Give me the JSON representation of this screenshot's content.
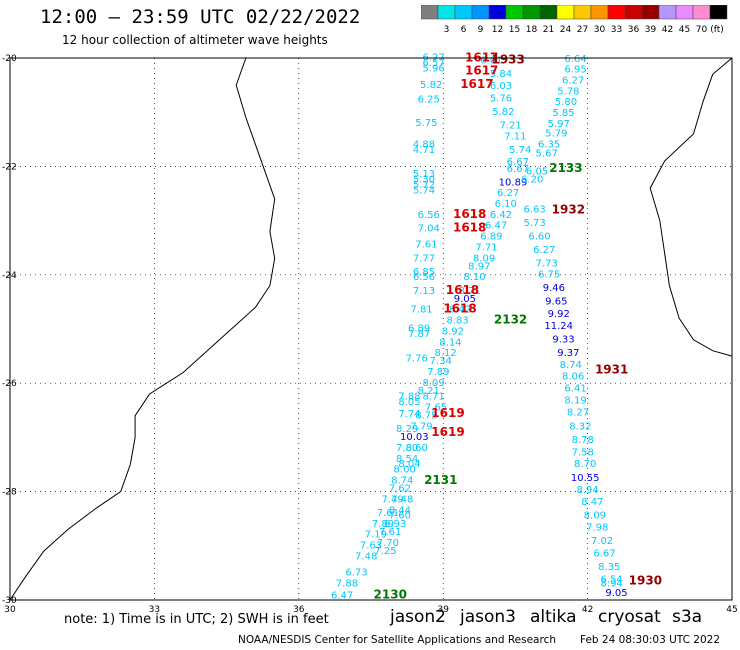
{
  "header": {
    "title": "12:00 – 23:59 UTC 02/22/2022",
    "subtitle": "12 hour collection of altimeter wave heights"
  },
  "legend": {
    "unit": "(ft)",
    "entries": [
      {
        "label": "",
        "color": "#7f7f7f"
      },
      {
        "label": "3",
        "color": "#00e5e5"
      },
      {
        "label": "6",
        "color": "#00c8ff"
      },
      {
        "label": "9",
        "color": "#0096ff"
      },
      {
        "label": "12",
        "color": "#0000dc"
      },
      {
        "label": "15",
        "color": "#00c800"
      },
      {
        "label": "18",
        "color": "#009600"
      },
      {
        "label": "21",
        "color": "#006400"
      },
      {
        "label": "24",
        "color": "#ffff00"
      },
      {
        "label": "27",
        "color": "#ffc800"
      },
      {
        "label": "30",
        "color": "#ff9600"
      },
      {
        "label": "33",
        "color": "#ff0000"
      },
      {
        "label": "36",
        "color": "#c80000"
      },
      {
        "label": "39",
        "color": "#960000"
      },
      {
        "label": "42",
        "color": "#b496ff"
      },
      {
        "label": "45",
        "color": "#e68cff"
      },
      {
        "label": "70",
        "color": "#ff8cd2"
      },
      {
        "label": "",
        "color": "#000000"
      }
    ]
  },
  "map": {
    "lon_ticks": [
      "30",
      "33",
      "36",
      "39",
      "42",
      "45"
    ],
    "lat_ticks": [
      "-20",
      "-22",
      "-24",
      "-26",
      "-28",
      "-30"
    ],
    "lon_range": [
      30,
      45
    ],
    "lat_range": [
      -30,
      -20
    ],
    "grid": "dotted",
    "tracks": [
      {
        "sat": "jason2",
        "label_color": "#dc0000",
        "times": [
          {
            "text": "1617",
            "lon": 39.8,
            "lat": -20.06
          },
          {
            "text": "1617",
            "lon": 39.8,
            "lat": -20.3
          },
          {
            "text": "1617",
            "lon": 39.7,
            "lat": -20.55
          },
          {
            "text": "1618",
            "lon": 39.55,
            "lat": -22.95
          },
          {
            "text": "1618",
            "lon": 39.55,
            "lat": -23.2
          },
          {
            "text": "1618",
            "lon": 39.4,
            "lat": -24.35
          },
          {
            "text": "1618",
            "lon": 39.35,
            "lat": -24.7
          },
          {
            "text": "1619",
            "lon": 39.1,
            "lat": -26.62
          },
          {
            "text": "1619",
            "lon": 39.1,
            "lat": -26.97
          }
        ]
      },
      {
        "sat": "jason3",
        "label_color": "#007800",
        "times": [
          {
            "text": "2133",
            "lon": 41.55,
            "lat": -22.1
          },
          {
            "text": "2132",
            "lon": 40.4,
            "lat": -24.9
          },
          {
            "text": "2131",
            "lon": 38.95,
            "lat": -27.86
          },
          {
            "text": "2130",
            "lon": 37.9,
            "lat": -29.97
          }
        ]
      },
      {
        "sat": "cryosat",
        "label_color": "#960000",
        "times": [
          {
            "text": "1933",
            "lon": 40.35,
            "lat": -20.1
          },
          {
            "text": "1932",
            "lon": 41.6,
            "lat": -22.87
          },
          {
            "text": "1931",
            "lon": 42.5,
            "lat": -25.82
          },
          {
            "text": "1930",
            "lon": 43.2,
            "lat": -29.71
          }
        ]
      }
    ],
    "wave_heights": [
      {
        "v": "6.27",
        "lon": 38.8,
        "lat": -20.05,
        "c": "#00c8ff"
      },
      {
        "v": "6.57",
        "lon": 38.8,
        "lat": -20.15,
        "c": "#00c8ff"
      },
      {
        "v": "5.96",
        "lon": 38.8,
        "lat": -20.25,
        "c": "#00c8ff"
      },
      {
        "v": "5.82",
        "lon": 38.75,
        "lat": -20.55,
        "c": "#00c8ff"
      },
      {
        "v": "6.25",
        "lon": 38.7,
        "lat": -20.82,
        "c": "#00c8ff"
      },
      {
        "v": "5.75",
        "lon": 38.65,
        "lat": -21.25,
        "c": "#00c8ff"
      },
      {
        "v": "4.88",
        "lon": 38.6,
        "lat": -21.65,
        "c": "#00c8ff"
      },
      {
        "v": "4.71",
        "lon": 38.6,
        "lat": -21.75,
        "c": "#00c8ff"
      },
      {
        "v": "5.13",
        "lon": 38.6,
        "lat": -22.2,
        "c": "#00c8ff"
      },
      {
        "v": "5.30",
        "lon": 38.6,
        "lat": -22.3,
        "c": "#00c8ff"
      },
      {
        "v": "5.72",
        "lon": 38.6,
        "lat": -22.4,
        "c": "#00c8ff"
      },
      {
        "v": "5.74",
        "lon": 38.6,
        "lat": -22.5,
        "c": "#00c8ff"
      },
      {
        "v": "6.56",
        "lon": 38.7,
        "lat": -22.95,
        "c": "#00c8ff"
      },
      {
        "v": "7.04",
        "lon": 38.7,
        "lat": -23.2,
        "c": "#00c8ff"
      },
      {
        "v": "7.61",
        "lon": 38.65,
        "lat": -23.5,
        "c": "#00c8ff"
      },
      {
        "v": "7.77",
        "lon": 38.6,
        "lat": -23.75,
        "c": "#00c8ff"
      },
      {
        "v": "6.85",
        "lon": 38.6,
        "lat": -24.0,
        "c": "#00c8ff"
      },
      {
        "v": "6.56",
        "lon": 38.6,
        "lat": -24.1,
        "c": "#00c8ff"
      },
      {
        "v": "7.13",
        "lon": 38.6,
        "lat": -24.35,
        "c": "#00c8ff"
      },
      {
        "v": "7.81",
        "lon": 38.55,
        "lat": -24.7,
        "c": "#00c8ff"
      },
      {
        "v": "6.89",
        "lon": 38.5,
        "lat": -25.05,
        "c": "#00c8ff"
      },
      {
        "v": "7.87",
        "lon": 38.5,
        "lat": -25.15,
        "c": "#00c8ff"
      },
      {
        "v": "7.76",
        "lon": 38.45,
        "lat": -25.6,
        "c": "#00c8ff"
      },
      {
        "v": "7.88",
        "lon": 38.3,
        "lat": -26.3,
        "c": "#00c8ff"
      },
      {
        "v": "8.05",
        "lon": 38.3,
        "lat": -26.4,
        "c": "#00c8ff"
      },
      {
        "v": "7.74",
        "lon": 38.3,
        "lat": -26.62,
        "c": "#00c8ff"
      },
      {
        "v": "8.29",
        "lon": 38.25,
        "lat": -26.9,
        "c": "#00c8ff"
      },
      {
        "v": "10.03",
        "lon": 38.4,
        "lat": -27.05,
        "c": "#0000dc"
      },
      {
        "v": "7.80",
        "lon": 38.25,
        "lat": -27.25,
        "c": "#00c8ff"
      },
      {
        "v": "8.54",
        "lon": 38.25,
        "lat": -27.45,
        "c": "#00c8ff"
      },
      {
        "v": "8.00",
        "lon": 38.2,
        "lat": -27.65,
        "c": "#00c8ff"
      },
      {
        "v": "8.74",
        "lon": 38.15,
        "lat": -27.85,
        "c": "#00c8ff"
      },
      {
        "v": "7.62",
        "lon": 38.1,
        "lat": -28.0,
        "c": "#00c8ff"
      },
      {
        "v": "7.49",
        "lon": 37.95,
        "lat": -28.2,
        "c": "#00c8ff"
      },
      {
        "v": "7.61",
        "lon": 37.85,
        "lat": -28.45,
        "c": "#00c8ff"
      },
      {
        "v": "7.89",
        "lon": 37.75,
        "lat": -28.65,
        "c": "#00c8ff"
      },
      {
        "v": "7.19",
        "lon": 37.6,
        "lat": -28.85,
        "c": "#00c8ff"
      },
      {
        "v": "7.63",
        "lon": 37.5,
        "lat": -29.05,
        "c": "#00c8ff"
      },
      {
        "v": "7.48",
        "lon": 37.4,
        "lat": -29.25,
        "c": "#00c8ff"
      },
      {
        "v": "6.73",
        "lon": 37.2,
        "lat": -29.55,
        "c": "#00c8ff"
      },
      {
        "v": "7.88",
        "lon": 37.0,
        "lat": -29.75,
        "c": "#00c8ff"
      },
      {
        "v": "6.47",
        "lon": 36.9,
        "lat": -29.97,
        "c": "#00c8ff"
      },
      {
        "v": "8.21",
        "lon": 38.7,
        "lat": -26.2,
        "c": "#00c8ff"
      },
      {
        "v": "8.71",
        "lon": 38.8,
        "lat": -26.3,
        "c": "#00c8ff"
      },
      {
        "v": "7.65",
        "lon": 38.85,
        "lat": -26.5,
        "c": "#00c8ff"
      },
      {
        "v": "8.75",
        "lon": 38.65,
        "lat": -26.65,
        "c": "#00c8ff"
      },
      {
        "v": "7.79",
        "lon": 38.55,
        "lat": -26.85,
        "c": "#00c8ff"
      },
      {
        "v": "8.60",
        "lon": 38.45,
        "lat": -27.25,
        "c": "#00c8ff"
      },
      {
        "v": "8.04",
        "lon": 38.3,
        "lat": -27.55,
        "c": "#00c8ff"
      },
      {
        "v": "7.48",
        "lon": 38.15,
        "lat": -28.2,
        "c": "#00c8ff"
      },
      {
        "v": "8.44",
        "lon": 38.1,
        "lat": -28.4,
        "c": "#00c8ff"
      },
      {
        "v": "7.60",
        "lon": 38.1,
        "lat": -28.5,
        "c": "#00c8ff"
      },
      {
        "v": "8.93",
        "lon": 38.0,
        "lat": -28.65,
        "c": "#00c8ff"
      },
      {
        "v": "7.61",
        "lon": 37.9,
        "lat": -28.8,
        "c": "#00c8ff"
      },
      {
        "v": "7.70",
        "lon": 37.85,
        "lat": -29.0,
        "c": "#00c8ff"
      },
      {
        "v": "7.25",
        "lon": 37.8,
        "lat": -29.15,
        "c": "#00c8ff"
      },
      {
        "v": "6.01",
        "lon": 40.0,
        "lat": -20.1,
        "c": "#00c8ff"
      },
      {
        "v": "5.84",
        "lon": 40.2,
        "lat": -20.35,
        "c": "#00c8ff"
      },
      {
        "v": "6.03",
        "lon": 40.2,
        "lat": -20.57,
        "c": "#00c8ff"
      },
      {
        "v": "5.76",
        "lon": 40.2,
        "lat": -20.8,
        "c": "#00c8ff"
      },
      {
        "v": "5.82",
        "lon": 40.25,
        "lat": -21.05,
        "c": "#00c8ff"
      },
      {
        "v": "7.21",
        "lon": 40.4,
        "lat": -21.3,
        "c": "#00c8ff"
      },
      {
        "v": "7.11",
        "lon": 40.5,
        "lat": -21.5,
        "c": "#00c8ff"
      },
      {
        "v": "5.74",
        "lon": 40.6,
        "lat": -21.75,
        "c": "#00c8ff"
      },
      {
        "v": "6.67",
        "lon": 40.55,
        "lat": -21.97,
        "c": "#00c8ff"
      },
      {
        "v": "6.67",
        "lon": 40.55,
        "lat": -22.1,
        "c": "#00c8ff"
      },
      {
        "v": "10.89",
        "lon": 40.45,
        "lat": -22.35,
        "c": "#0000dc"
      },
      {
        "v": "6.27",
        "lon": 40.35,
        "lat": -22.55,
        "c": "#00c8ff"
      },
      {
        "v": "6.10",
        "lon": 40.3,
        "lat": -22.75,
        "c": "#00c8ff"
      },
      {
        "v": "6.42",
        "lon": 40.2,
        "lat": -22.95,
        "c": "#00c8ff"
      },
      {
        "v": "6.47",
        "lon": 40.1,
        "lat": -23.15,
        "c": "#00c8ff"
      },
      {
        "v": "6.89",
        "lon": 40.0,
        "lat": -23.35,
        "c": "#00c8ff"
      },
      {
        "v": "7.71",
        "lon": 39.9,
        "lat": -23.55,
        "c": "#00c8ff"
      },
      {
        "v": "8.09",
        "lon": 39.85,
        "lat": -23.75,
        "c": "#00c8ff"
      },
      {
        "v": "8.97",
        "lon": 39.75,
        "lat": -23.9,
        "c": "#00c8ff"
      },
      {
        "v": "8.10",
        "lon": 39.65,
        "lat": -24.1,
        "c": "#00c8ff"
      },
      {
        "v": "8.71",
        "lon": 39.55,
        "lat": -24.35,
        "c": "#00c8ff"
      },
      {
        "v": "9.05",
        "lon": 39.45,
        "lat": -24.5,
        "c": "#0000dc"
      },
      {
        "v": "8.42",
        "lon": 39.35,
        "lat": -24.7,
        "c": "#00c8ff"
      },
      {
        "v": "8.83",
        "lon": 39.3,
        "lat": -24.9,
        "c": "#00c8ff"
      },
      {
        "v": "8.92",
        "lon": 39.2,
        "lat": -25.1,
        "c": "#00c8ff"
      },
      {
        "v": "8.14",
        "lon": 39.15,
        "lat": -25.3,
        "c": "#00c8ff"
      },
      {
        "v": "8.12",
        "lon": 39.05,
        "lat": -25.5,
        "c": "#00c8ff"
      },
      {
        "v": "7.34",
        "lon": 38.95,
        "lat": -25.65,
        "c": "#00c8ff"
      },
      {
        "v": "7.89",
        "lon": 38.9,
        "lat": -25.85,
        "c": "#00c8ff"
      },
      {
        "v": "8.09",
        "lon": 38.8,
        "lat": -26.05,
        "c": "#00c8ff"
      },
      {
        "v": "6.64",
        "lon": 41.75,
        "lat": -20.07,
        "c": "#00c8ff"
      },
      {
        "v": "6.95",
        "lon": 41.75,
        "lat": -20.27,
        "c": "#00c8ff"
      },
      {
        "v": "6.27",
        "lon": 41.7,
        "lat": -20.47,
        "c": "#00c8ff"
      },
      {
        "v": "5.78",
        "lon": 41.6,
        "lat": -20.67,
        "c": "#00c8ff"
      },
      {
        "v": "5.80",
        "lon": 41.55,
        "lat": -20.87,
        "c": "#00c8ff"
      },
      {
        "v": "5.85",
        "lon": 41.5,
        "lat": -21.07,
        "c": "#00c8ff"
      },
      {
        "v": "5.97",
        "lon": 41.4,
        "lat": -21.27,
        "c": "#00c8ff"
      },
      {
        "v": "5.79",
        "lon": 41.35,
        "lat": -21.45,
        "c": "#00c8ff"
      },
      {
        "v": "6.35",
        "lon": 41.2,
        "lat": -21.65,
        "c": "#00c8ff"
      },
      {
        "v": "5.67",
        "lon": 41.15,
        "lat": -21.82,
        "c": "#00c8ff"
      },
      {
        "v": "6.05",
        "lon": 40.95,
        "lat": -22.15,
        "c": "#00c8ff"
      },
      {
        "v": "6.20",
        "lon": 40.85,
        "lat": -22.3,
        "c": "#00c8ff"
      },
      {
        "v": "6.63",
        "lon": 40.9,
        "lat": -22.85,
        "c": "#00c8ff"
      },
      {
        "v": "5.73",
        "lon": 40.9,
        "lat": -23.1,
        "c": "#00c8ff"
      },
      {
        "v": "6.60",
        "lon": 41.0,
        "lat": -23.35,
        "c": "#00c8ff"
      },
      {
        "v": "6.27",
        "lon": 41.1,
        "lat": -23.6,
        "c": "#00c8ff"
      },
      {
        "v": "7.73",
        "lon": 41.15,
        "lat": -23.85,
        "c": "#00c8ff"
      },
      {
        "v": "6.75",
        "lon": 41.2,
        "lat": -24.05,
        "c": "#00c8ff"
      },
      {
        "v": "9.46",
        "lon": 41.3,
        "lat": -24.3,
        "c": "#0000dc"
      },
      {
        "v": "9.65",
        "lon": 41.35,
        "lat": -24.55,
        "c": "#0000dc"
      },
      {
        "v": "9.92",
        "lon": 41.4,
        "lat": -24.78,
        "c": "#0000dc"
      },
      {
        "v": "11.24",
        "lon": 41.4,
        "lat": -25.0,
        "c": "#0000dc"
      },
      {
        "v": "9.33",
        "lon": 41.5,
        "lat": -25.25,
        "c": "#0000dc"
      },
      {
        "v": "9.37",
        "lon": 41.6,
        "lat": -25.5,
        "c": "#0000dc"
      },
      {
        "v": "8.74",
        "lon": 41.65,
        "lat": -25.72,
        "c": "#00c8ff"
      },
      {
        "v": "8.06",
        "lon": 41.7,
        "lat": -25.93,
        "c": "#00c8ff"
      },
      {
        "v": "6.41",
        "lon": 41.75,
        "lat": -26.15,
        "c": "#00c8ff"
      },
      {
        "v": "8.19",
        "lon": 41.75,
        "lat": -26.37,
        "c": "#00c8ff"
      },
      {
        "v": "8.27",
        "lon": 41.8,
        "lat": -26.6,
        "c": "#00c8ff"
      },
      {
        "v": "8.32",
        "lon": 41.85,
        "lat": -26.85,
        "c": "#00c8ff"
      },
      {
        "v": "8.78",
        "lon": 41.9,
        "lat": -27.1,
        "c": "#00c8ff"
      },
      {
        "v": "7.58",
        "lon": 41.9,
        "lat": -27.33,
        "c": "#00c8ff"
      },
      {
        "v": "8.70",
        "lon": 41.95,
        "lat": -27.55,
        "c": "#00c8ff"
      },
      {
        "v": "10.55",
        "lon": 41.95,
        "lat": -27.8,
        "c": "#0000dc"
      },
      {
        "v": "8.94",
        "lon": 42.0,
        "lat": -28.03,
        "c": "#00c8ff"
      },
      {
        "v": "8.47",
        "lon": 42.1,
        "lat": -28.25,
        "c": "#00c8ff"
      },
      {
        "v": "8.09",
        "lon": 42.15,
        "lat": -28.5,
        "c": "#00c8ff"
      },
      {
        "v": "7.98",
        "lon": 42.2,
        "lat": -28.72,
        "c": "#00c8ff"
      },
      {
        "v": "7.02",
        "lon": 42.3,
        "lat": -28.97,
        "c": "#00c8ff"
      },
      {
        "v": "6.67",
        "lon": 42.35,
        "lat": -29.2,
        "c": "#00c8ff"
      },
      {
        "v": "8.35",
        "lon": 42.45,
        "lat": -29.45,
        "c": "#00c8ff"
      },
      {
        "v": "6.54",
        "lon": 42.5,
        "lat": -29.68,
        "c": "#00c8ff"
      },
      {
        "v": "8.94",
        "lon": 42.5,
        "lat": -29.75,
        "c": "#00c8ff"
      },
      {
        "v": "9.05",
        "lon": 42.6,
        "lat": -29.93,
        "c": "#0000dc"
      }
    ]
  },
  "footer": {
    "note": "note: 1) Time is in UTC; 2) SWH is in feet",
    "satellites": [
      {
        "name": "jason2",
        "color": "#0000dc"
      },
      {
        "name": "jason3",
        "color": "#009600"
      },
      {
        "name": "altika",
        "color": "#ff9600"
      },
      {
        "name": "cryosat",
        "color": "#960000"
      },
      {
        "name": "s3a",
        "color": "#dc0000"
      }
    ],
    "credit": "NOAA/NESDIS Center for Satellite Applications and Research",
    "timestamp": "Feb 24 08:30:03 UTC 2022"
  }
}
